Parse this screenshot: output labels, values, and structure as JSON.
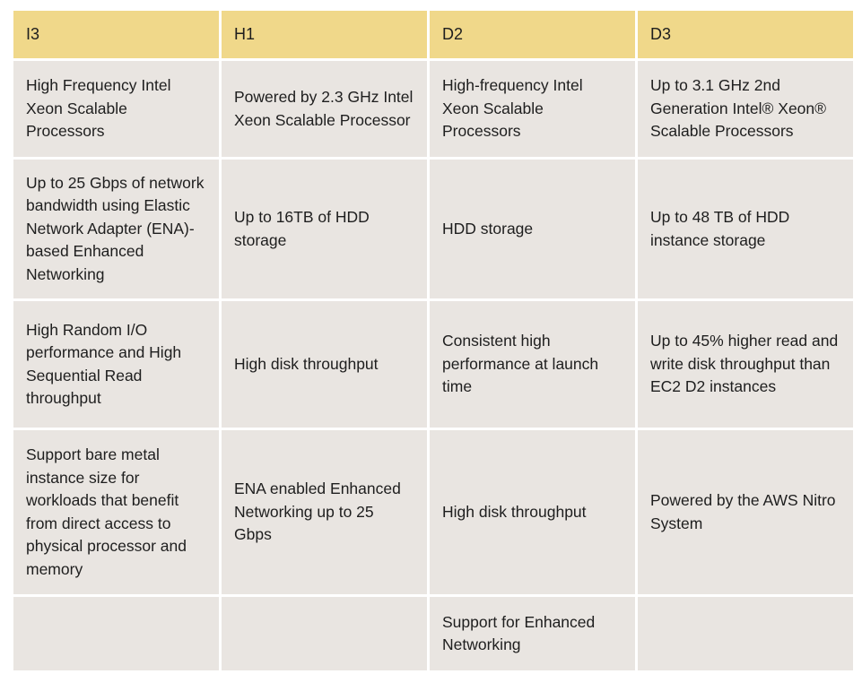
{
  "table": {
    "headers": [
      "I3",
      "H1",
      "D2",
      "D3"
    ],
    "rows": [
      [
        "High Frequency Intel Xeon Scalable Processors",
        "Powered by 2.3 GHz Intel Xeon Scalable Processor",
        "High-frequency Intel Xeon Scalable Processors",
        "Up to 3.1 GHz 2nd Generation Intel® Xeon® Scalable Processors"
      ],
      [
        "Up to 25 Gbps of network bandwidth using Elastic Network Adapter (ENA)-based Enhanced Networking",
        "Up to 16TB of HDD storage",
        "HDD storage",
        "Up to 48 TB of HDD instance storage"
      ],
      [
        "High Random I/O performance and High Sequential Read throughput",
        "High disk throughput",
        "Consistent high performance at launch time",
        "Up to 45% higher read and write disk throughput than EC2 D2 instances"
      ],
      [
        "Support bare metal instance size for workloads that benefit from direct access to physical processor and memory",
        "ENA enabled Enhanced Networking up to 25 Gbps",
        "High disk throughput",
        "Powered by the AWS Nitro System"
      ],
      [
        "",
        "",
        "Support for Enhanced Networking",
        ""
      ]
    ]
  },
  "colors": {
    "header_bg": "#f0d88a",
    "cell_bg": "#e9e5e1",
    "border": "#ffffff",
    "text": "#1e1e1e"
  }
}
